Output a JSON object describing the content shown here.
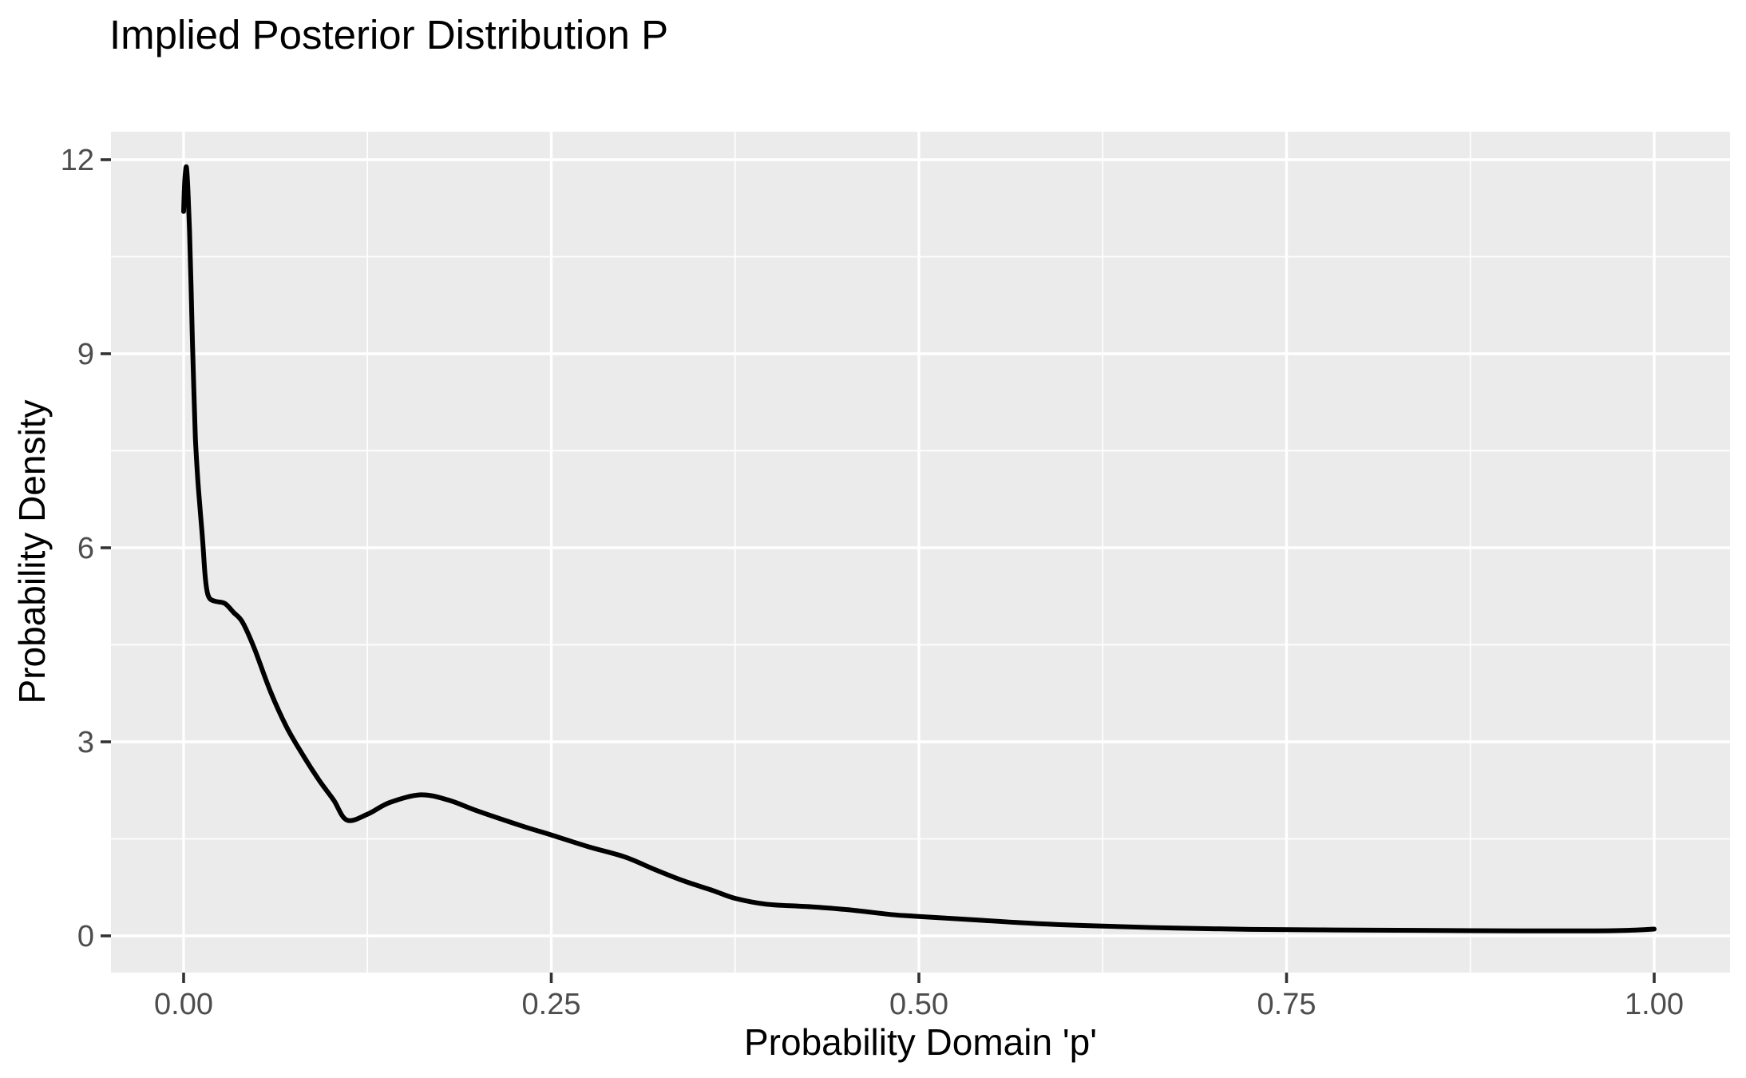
{
  "chart_data": {
    "type": "line",
    "subtype": "density",
    "title": "Implied Posterior Distribution P",
    "xlabel": "Probability Domain 'p'",
    "ylabel": "Probability Density",
    "legend": "none",
    "grid": "on",
    "x_ticks": {
      "values": [
        0,
        0.25,
        0.5,
        0.75,
        1
      ],
      "labels": [
        "0.00",
        "0.25",
        "0.50",
        "0.75",
        "1.00"
      ]
    },
    "y_ticks": {
      "values": [
        0,
        3,
        6,
        9,
        12
      ],
      "labels": [
        "0",
        "3",
        "6",
        "9",
        "12"
      ]
    },
    "x_minor_ticks": [
      0.125,
      0.375,
      0.625,
      0.875
    ],
    "y_minor_ticks": [
      1.5,
      4.5,
      7.5,
      10.5
    ],
    "xlim": [
      -0.0494,
      1.0516
    ],
    "ylim": [
      -0.568,
      12.432
    ],
    "series": [
      {
        "name": "posterior-density-curve",
        "points": [
          [
            0.0,
            11.2
          ],
          [
            0.0006,
            11.6
          ],
          [
            0.0013,
            11.82
          ],
          [
            0.002,
            11.87
          ],
          [
            0.003,
            11.5
          ],
          [
            0.004,
            10.9
          ],
          [
            0.005,
            10.1
          ],
          [
            0.006,
            9.2
          ],
          [
            0.007,
            8.4
          ],
          [
            0.008,
            7.7
          ],
          [
            0.0095,
            7.1
          ],
          [
            0.011,
            6.65
          ],
          [
            0.013,
            6.1
          ],
          [
            0.0145,
            5.6
          ],
          [
            0.016,
            5.32
          ],
          [
            0.018,
            5.21
          ],
          [
            0.022,
            5.17
          ],
          [
            0.028,
            5.14
          ],
          [
            0.034,
            5.0
          ],
          [
            0.04,
            4.85
          ],
          [
            0.048,
            4.45
          ],
          [
            0.059,
            3.78
          ],
          [
            0.07,
            3.23
          ],
          [
            0.081,
            2.8
          ],
          [
            0.092,
            2.41
          ],
          [
            0.102,
            2.1
          ],
          [
            0.111,
            1.79
          ],
          [
            0.125,
            1.88
          ],
          [
            0.14,
            2.06
          ],
          [
            0.161,
            2.18
          ],
          [
            0.18,
            2.1
          ],
          [
            0.2,
            1.93
          ],
          [
            0.23,
            1.7
          ],
          [
            0.25,
            1.56
          ],
          [
            0.275,
            1.38
          ],
          [
            0.3,
            1.22
          ],
          [
            0.32,
            1.03
          ],
          [
            0.34,
            0.85
          ],
          [
            0.36,
            0.7
          ],
          [
            0.375,
            0.58
          ],
          [
            0.396,
            0.49
          ],
          [
            0.418,
            0.46
          ],
          [
            0.433,
            0.44
          ],
          [
            0.454,
            0.4
          ],
          [
            0.481,
            0.33
          ],
          [
            0.5,
            0.3
          ],
          [
            0.536,
            0.25
          ],
          [
            0.58,
            0.19
          ],
          [
            0.625,
            0.15
          ],
          [
            0.675,
            0.12
          ],
          [
            0.725,
            0.1
          ],
          [
            0.775,
            0.092
          ],
          [
            0.825,
            0.086
          ],
          [
            0.875,
            0.08
          ],
          [
            0.925,
            0.076
          ],
          [
            0.96,
            0.076
          ],
          [
            0.985,
            0.088
          ],
          [
            1.0,
            0.105
          ]
        ]
      }
    ],
    "colors": {
      "curve": "#000000",
      "panel_bg": "#EBEBEB",
      "grid": "#FFFFFF",
      "tick_label": "#4D4D4D",
      "tick_mark": "#333333",
      "title_text": "#000000"
    }
  }
}
